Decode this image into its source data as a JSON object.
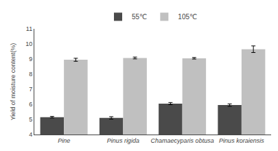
{
  "chart_data": {
    "type": "bar",
    "categories": [
      "Pine",
      "Pinus rigida",
      "Chamaecyparis obtusa",
      "Pinus koraiensis"
    ],
    "series": [
      {
        "name": "55℃",
        "color": "#4a4a4a",
        "values": [
          5.15,
          5.1,
          6.05,
          5.95
        ],
        "errors": [
          0.05,
          0.08,
          0.07,
          0.08
        ]
      },
      {
        "name": "105℃",
        "color": "#c0c0c0",
        "values": [
          8.95,
          9.07,
          9.05,
          9.65
        ],
        "errors": [
          0.1,
          0.06,
          0.05,
          0.22
        ]
      }
    ],
    "ylabel": "Yield of moisture content(%)",
    "ylim": [
      4,
      11
    ],
    "yticks": [
      4,
      5,
      6,
      7,
      8,
      9,
      10,
      11
    ],
    "grid": false,
    "legend": "top"
  }
}
